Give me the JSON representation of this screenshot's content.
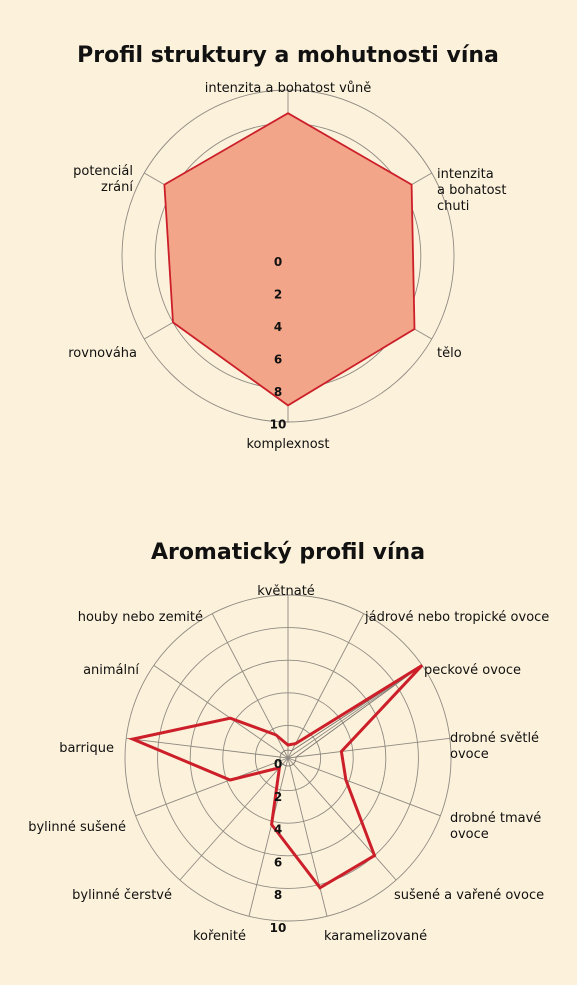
{
  "colors": {
    "background": "#fcf1da",
    "grid": "#8f8a82",
    "series_stroke": "#cc1f2a",
    "series_fill": "#f2a588",
    "thin_line": "#7a7570"
  },
  "chart_data": [
    {
      "type": "radar",
      "title": "Profil struktury a mohutnosti vína",
      "range": [
        0,
        10
      ],
      "ticks": [
        "0",
        "2",
        "4",
        "6",
        "8",
        "10"
      ],
      "grid": true,
      "categories": [
        "intenzita a bohatost vůně",
        "intenzita a bohatost chuti",
        "tělo",
        "komplexnost",
        "rovnováha",
        "potenciál zrání"
      ],
      "series": [
        {
          "values": [
            8.6,
            8.6,
            8.8,
            9.0,
            8.0,
            8.6
          ],
          "filled": true
        }
      ]
    },
    {
      "type": "radar",
      "title": "Aromatický profil vína",
      "range": [
        0,
        10
      ],
      "ticks": [
        "0",
        "2",
        "4",
        "6",
        "8",
        "10"
      ],
      "grid": true,
      "categories": [
        "květnaté",
        "jádrové nebo tropické ovoce",
        "peckové ovoce",
        "drobné světlé ovoce",
        "drobné tmavé ovoce",
        "sušené a vařené ovoce",
        "karamelizované",
        "kořenité",
        "bylinné čerstvé",
        "bylinné sušené",
        "barrique",
        "animální",
        "houby nebo zemité"
      ],
      "series": [
        {
          "values": [
            0.8,
            1.0,
            10.0,
            3.3,
            3.8,
            8.0,
            8.2,
            4.2,
            0.8,
            3.8,
            9.6,
            4.3,
            1.6
          ],
          "filled": false
        },
        {
          "values": [
            0.5,
            0.5,
            9.6,
            0.5,
            0.5,
            0.5,
            0.5,
            0.5,
            0.5,
            0.5,
            0.5,
            0.5,
            0.5
          ],
          "filled": false,
          "thin": true
        }
      ]
    }
  ]
}
